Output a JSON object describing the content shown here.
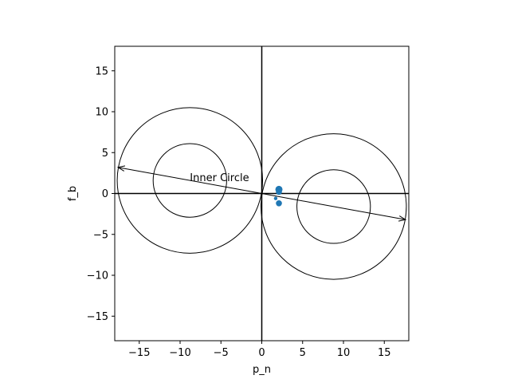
{
  "chart_data": {
    "type": "scatter",
    "title": "",
    "xlabel": "p_n",
    "ylabel": "f_b",
    "xlim": [
      -18,
      18
    ],
    "ylim": [
      -18,
      18
    ],
    "grid": false,
    "xticks": [
      -15,
      -10,
      -5,
      0,
      5,
      10,
      15
    ],
    "yticks": [
      -15,
      -10,
      -5,
      0,
      5,
      10,
      15
    ],
    "xtick_labels": [
      "−15",
      "−10",
      "−5",
      "0",
      "5",
      "10",
      "15"
    ],
    "ytick_labels": [
      "−15",
      "−10",
      "−5",
      "0",
      "5",
      "10",
      "15"
    ],
    "marker_color": "#1f77b4",
    "line_color": "#000000",
    "zero_lines": [
      {
        "name": "horizontal",
        "x": [
          -18,
          18
        ],
        "y": [
          0,
          0
        ]
      },
      {
        "name": "vertical",
        "x": [
          0,
          0
        ],
        "y": [
          -18,
          18
        ]
      }
    ],
    "circles": [
      {
        "name": "left-outer-circle",
        "cx": -8.8,
        "cy": 1.6,
        "r": 8.9
      },
      {
        "name": "left-inner-circle",
        "cx": -8.8,
        "cy": 1.6,
        "r": 4.5
      },
      {
        "name": "right-outer-circle",
        "cx": 8.8,
        "cy": -1.6,
        "r": 8.9
      },
      {
        "name": "right-inner-circle",
        "cx": 8.8,
        "cy": -1.6,
        "r": 4.5
      }
    ],
    "arrows": [
      {
        "name": "left-arrow",
        "from": [
          0,
          0
        ],
        "to": [
          -17.6,
          3.2
        ]
      },
      {
        "name": "right-arrow",
        "from": [
          0,
          0
        ],
        "to": [
          17.6,
          -3.2
        ]
      }
    ],
    "points": [
      {
        "x": 2.1,
        "y": 0.5,
        "size": "large"
      },
      {
        "x": 2.1,
        "y": 0.2,
        "size": "medium"
      },
      {
        "x": 1.7,
        "y": -0.6,
        "size": "small"
      },
      {
        "x": 2.1,
        "y": -1.2,
        "size": "medium"
      }
    ],
    "annotations": [
      {
        "text": "Inner Circle",
        "x": -8.8,
        "y": 1.6
      }
    ]
  }
}
